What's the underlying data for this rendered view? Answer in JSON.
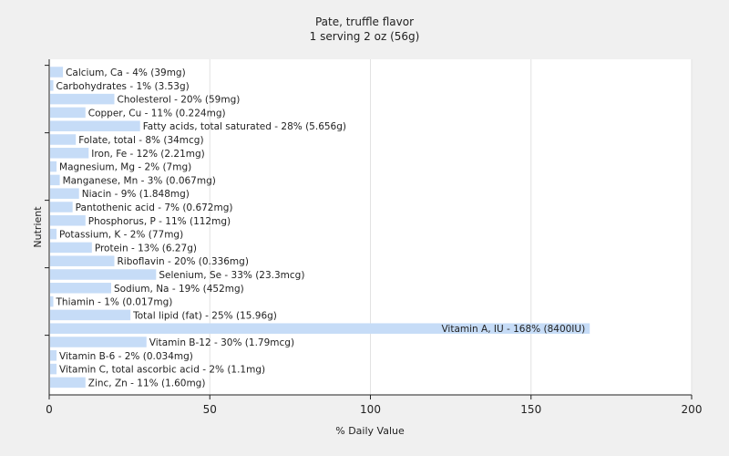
{
  "chart_data": {
    "type": "bar",
    "orientation": "horizontal",
    "title": "Pate, truffle flavor",
    "subtitle": "1 serving 2 oz (56g)",
    "xlabel": "% Daily Value",
    "ylabel": "Nutrient",
    "xlim": [
      0,
      200
    ],
    "xticks": [
      0,
      50,
      100,
      150,
      200
    ],
    "grid": true,
    "bar_color": "#c6dcf7",
    "categories": [
      "Calcium, Ca - 4% (39mg)",
      "Carbohydrates - 1% (3.53g)",
      "Cholesterol - 20% (59mg)",
      "Copper, Cu - 11% (0.224mg)",
      "Fatty acids, total saturated - 28% (5.656g)",
      "Folate, total - 8% (34mcg)",
      "Iron, Fe - 12% (2.21mg)",
      "Magnesium, Mg - 2% (7mg)",
      "Manganese, Mn - 3% (0.067mg)",
      "Niacin - 9% (1.848mg)",
      "Pantothenic acid - 7% (0.672mg)",
      "Phosphorus, P - 11% (112mg)",
      "Potassium, K - 2% (77mg)",
      "Protein - 13% (6.27g)",
      "Riboflavin - 20% (0.336mg)",
      "Selenium, Se - 33% (23.3mcg)",
      "Sodium, Na - 19% (452mg)",
      "Thiamin - 1% (0.017mg)",
      "Total lipid (fat) - 25% (15.96g)",
      "Vitamin A, IU - 168% (8400IU)",
      "Vitamin B-12 - 30% (1.79mcg)",
      "Vitamin B-6 - 2% (0.034mg)",
      "Vitamin C, total ascorbic acid - 2% (1.1mg)",
      "Zinc, Zn - 11% (1.60mg)"
    ],
    "values": [
      4,
      1,
      20,
      11,
      28,
      8,
      12,
      2,
      3,
      9,
      7,
      11,
      2,
      13,
      20,
      33,
      19,
      1,
      25,
      168,
      30,
      2,
      2,
      11
    ]
  }
}
